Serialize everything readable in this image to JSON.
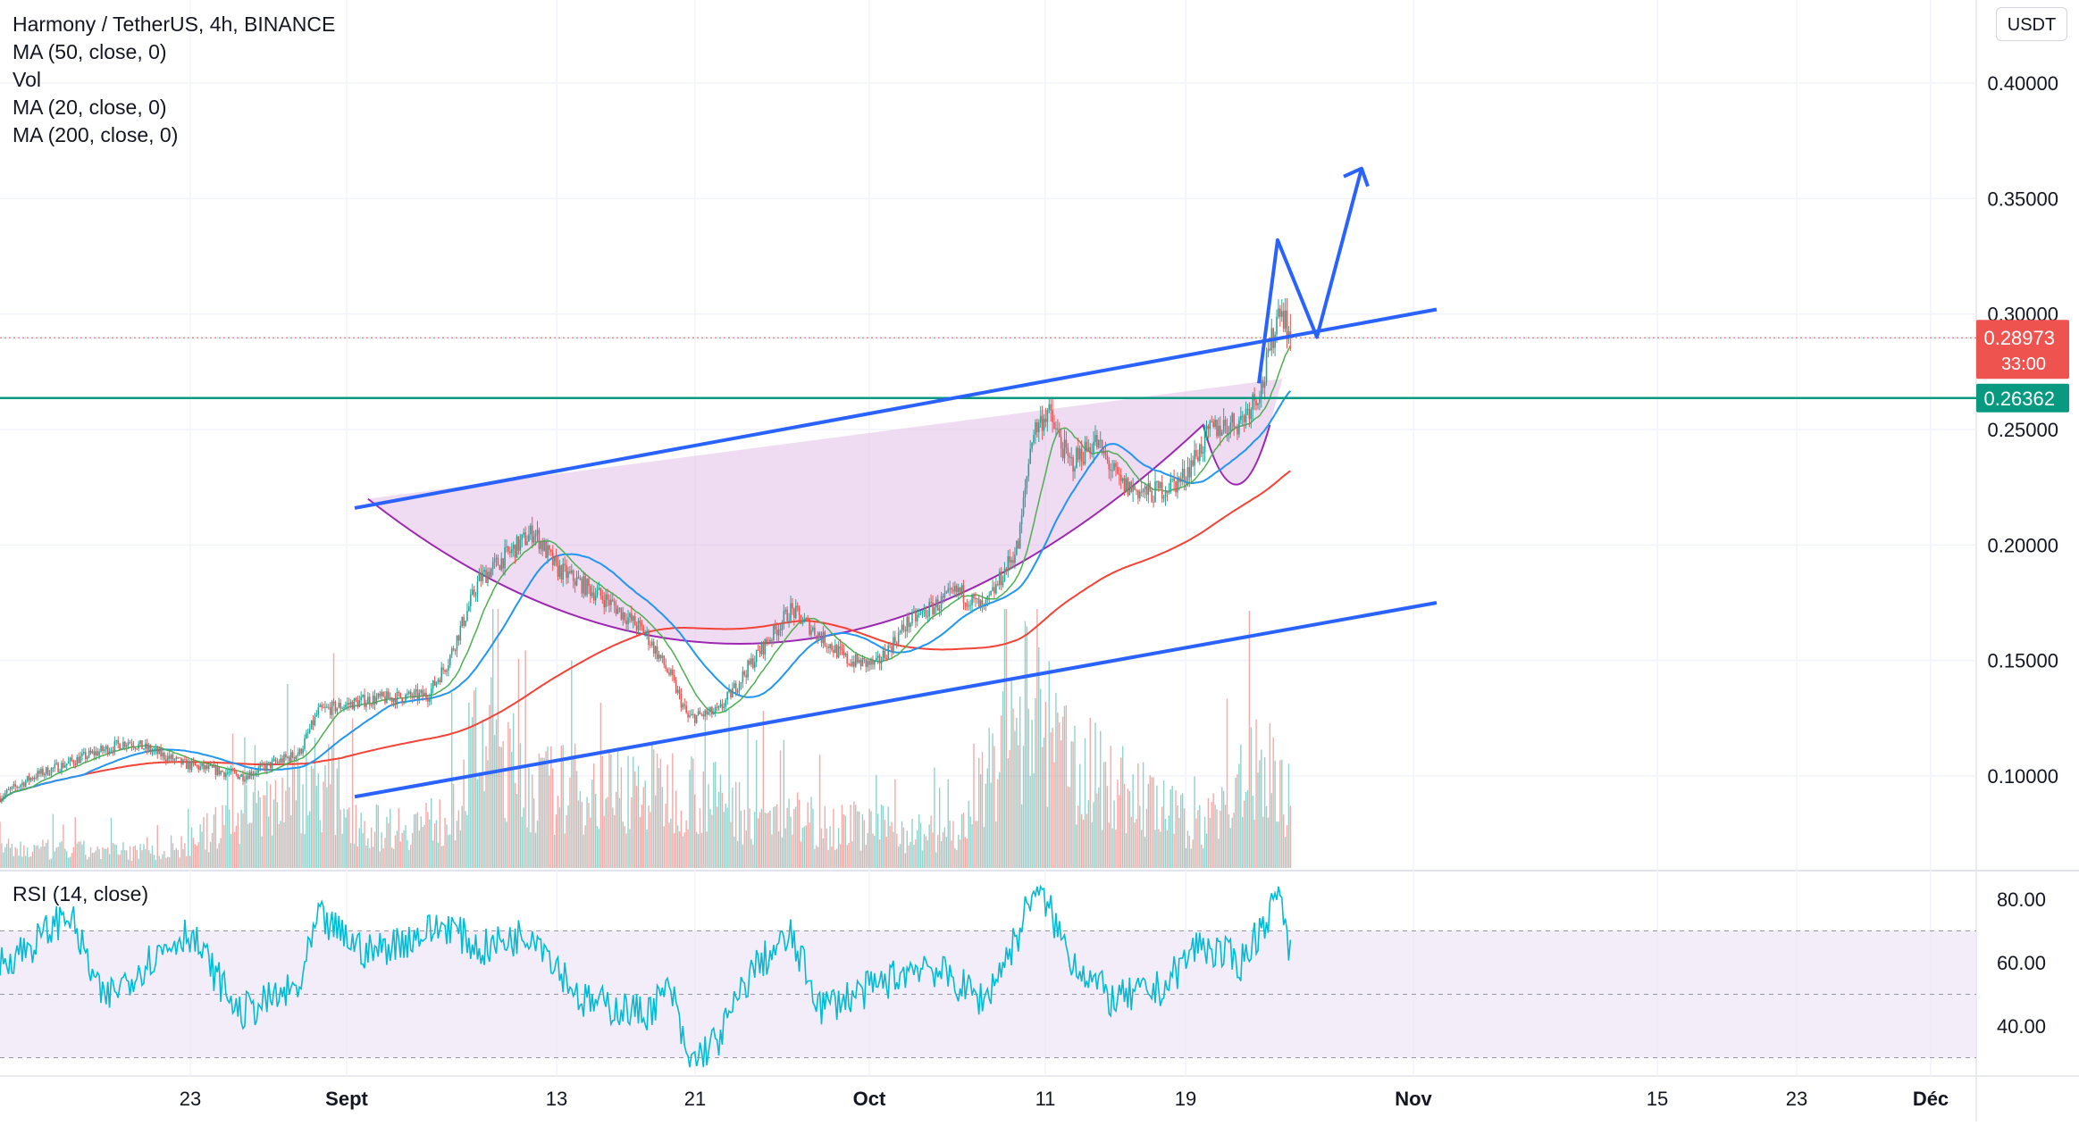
{
  "header": {
    "title": "Harmony / TetherUS, 4h, BINANCE",
    "indicators": [
      "MA (50, close, 0)",
      "Vol",
      "MA (20, close, 0)",
      "MA (200, close, 0)"
    ],
    "currency": "USDT"
  },
  "rsi_panel": {
    "legend": "RSI (14, close)"
  },
  "price_badges": {
    "last_price": "0.28973",
    "countdown": "33:00",
    "horizontal_level": "0.26362"
  },
  "colors": {
    "up_candle": "#26a69a",
    "down_candle": "#ef5350",
    "ma20": "#4caf50",
    "ma50": "#2196f3",
    "ma200": "#f44336",
    "channel": "#2962ff",
    "level_line": "#089981",
    "cup_fill": "#e1bee7",
    "cup_stroke": "#9c27b0",
    "rsi_line": "#00bcd4",
    "rsi_band": "#ede7f6"
  },
  "chart_data": [
    {
      "type": "candlestick",
      "title": "Harmony / TetherUS, 4h, BINANCE",
      "x_tick_labels": [
        "23",
        "Sept",
        "13",
        "21",
        "Oct",
        "11",
        "19",
        "Nov",
        "15",
        "23",
        "Déc"
      ],
      "y_tick_labels": [
        "0.40000",
        "0.35000",
        "0.30000",
        "0.25000",
        "0.20000",
        "0.15000",
        "0.10000"
      ],
      "ylim": [
        0.06,
        0.42
      ],
      "grid": true,
      "last_price": 0.28973,
      "anchors": {
        "close": [
          [
            0,
            0.091
          ],
          [
            20,
            0.1
          ],
          [
            48,
            0.108
          ],
          [
            75,
            0.115
          ],
          [
            108,
            0.105
          ],
          [
            142,
            0.1
          ],
          [
            175,
            0.11
          ],
          [
            186,
            0.128
          ],
          [
            215,
            0.133
          ],
          [
            250,
            0.135
          ],
          [
            262,
            0.15
          ],
          [
            280,
            0.185
          ],
          [
            312,
            0.206
          ],
          [
            325,
            0.19
          ],
          [
            355,
            0.176
          ],
          [
            377,
            0.162
          ],
          [
            392,
            0.143
          ],
          [
            402,
            0.125
          ],
          [
            420,
            0.128
          ],
          [
            440,
            0.15
          ],
          [
            462,
            0.172
          ],
          [
            480,
            0.16
          ],
          [
            495,
            0.15
          ],
          [
            512,
            0.148
          ],
          [
            530,
            0.166
          ],
          [
            560,
            0.18
          ],
          [
            575,
            0.172
          ],
          [
            595,
            0.2
          ],
          [
            603,
            0.248
          ],
          [
            612,
            0.258
          ],
          [
            625,
            0.235
          ],
          [
            640,
            0.245
          ],
          [
            655,
            0.226
          ],
          [
            672,
            0.222
          ],
          [
            690,
            0.228
          ],
          [
            708,
            0.25
          ],
          [
            725,
            0.254
          ],
          [
            738,
            0.27
          ],
          [
            748,
            0.305
          ],
          [
            754,
            0.29
          ]
        ],
        "volume": [
          [
            0,
            7
          ],
          [
            100,
            6
          ],
          [
            186,
            35
          ],
          [
            215,
            15
          ],
          [
            262,
            18
          ],
          [
            280,
            50
          ],
          [
            312,
            30
          ],
          [
            402,
            30
          ],
          [
            440,
            20
          ],
          [
            560,
            12
          ],
          [
            600,
            60
          ],
          [
            625,
            40
          ],
          [
            700,
            15
          ],
          [
            740,
            40
          ],
          [
            754,
            25
          ]
        ]
      },
      "moving_averages": [
        {
          "name": "MA (20, close, 0)",
          "color": "#4caf50"
        },
        {
          "name": "MA (50, close, 0)",
          "color": "#2196f3"
        },
        {
          "name": "MA (200, close, 0)",
          "color": "#f44336"
        }
      ],
      "horizontal_level": 0.26362,
      "annotations": {
        "channel_upper": [
          [
            0,
            0.216
          ],
          [
            1,
            0.302
          ]
        ],
        "channel_lower": [
          [
            0,
            0.091
          ],
          [
            1,
            0.175
          ]
        ],
        "cup_rim": [
          0.22,
          0.272
        ],
        "cup_bottom": 0.14,
        "handle_low": 0.215,
        "projection": [
          0.27,
          0.332,
          0.29,
          0.363
        ]
      }
    },
    {
      "type": "line",
      "title": "RSI (14, close)",
      "y_tick_labels": [
        "80.00",
        "60.00",
        "40.00"
      ],
      "ylim": [
        26,
        85
      ],
      "bands": [
        30,
        50,
        70
      ],
      "anchors": [
        [
          0,
          60
        ],
        [
          20,
          66
        ],
        [
          40,
          76
        ],
        [
          60,
          48
        ],
        [
          90,
          62
        ],
        [
          110,
          70
        ],
        [
          140,
          44
        ],
        [
          175,
          52
        ],
        [
          186,
          74
        ],
        [
          215,
          63
        ],
        [
          262,
          72
        ],
        [
          280,
          64
        ],
        [
          312,
          70
        ],
        [
          340,
          48
        ],
        [
          377,
          44
        ],
        [
          392,
          52
        ],
        [
          402,
          28
        ],
        [
          420,
          36
        ],
        [
          440,
          58
        ],
        [
          462,
          68
        ],
        [
          480,
          46
        ],
        [
          510,
          52
        ],
        [
          540,
          60
        ],
        [
          575,
          48
        ],
        [
          596,
          70
        ],
        [
          603,
          83
        ],
        [
          612,
          78
        ],
        [
          625,
          62
        ],
        [
          650,
          48
        ],
        [
          680,
          52
        ],
        [
          700,
          66
        ],
        [
          725,
          60
        ],
        [
          742,
          76
        ],
        [
          748,
          84
        ],
        [
          754,
          62
        ]
      ]
    }
  ]
}
